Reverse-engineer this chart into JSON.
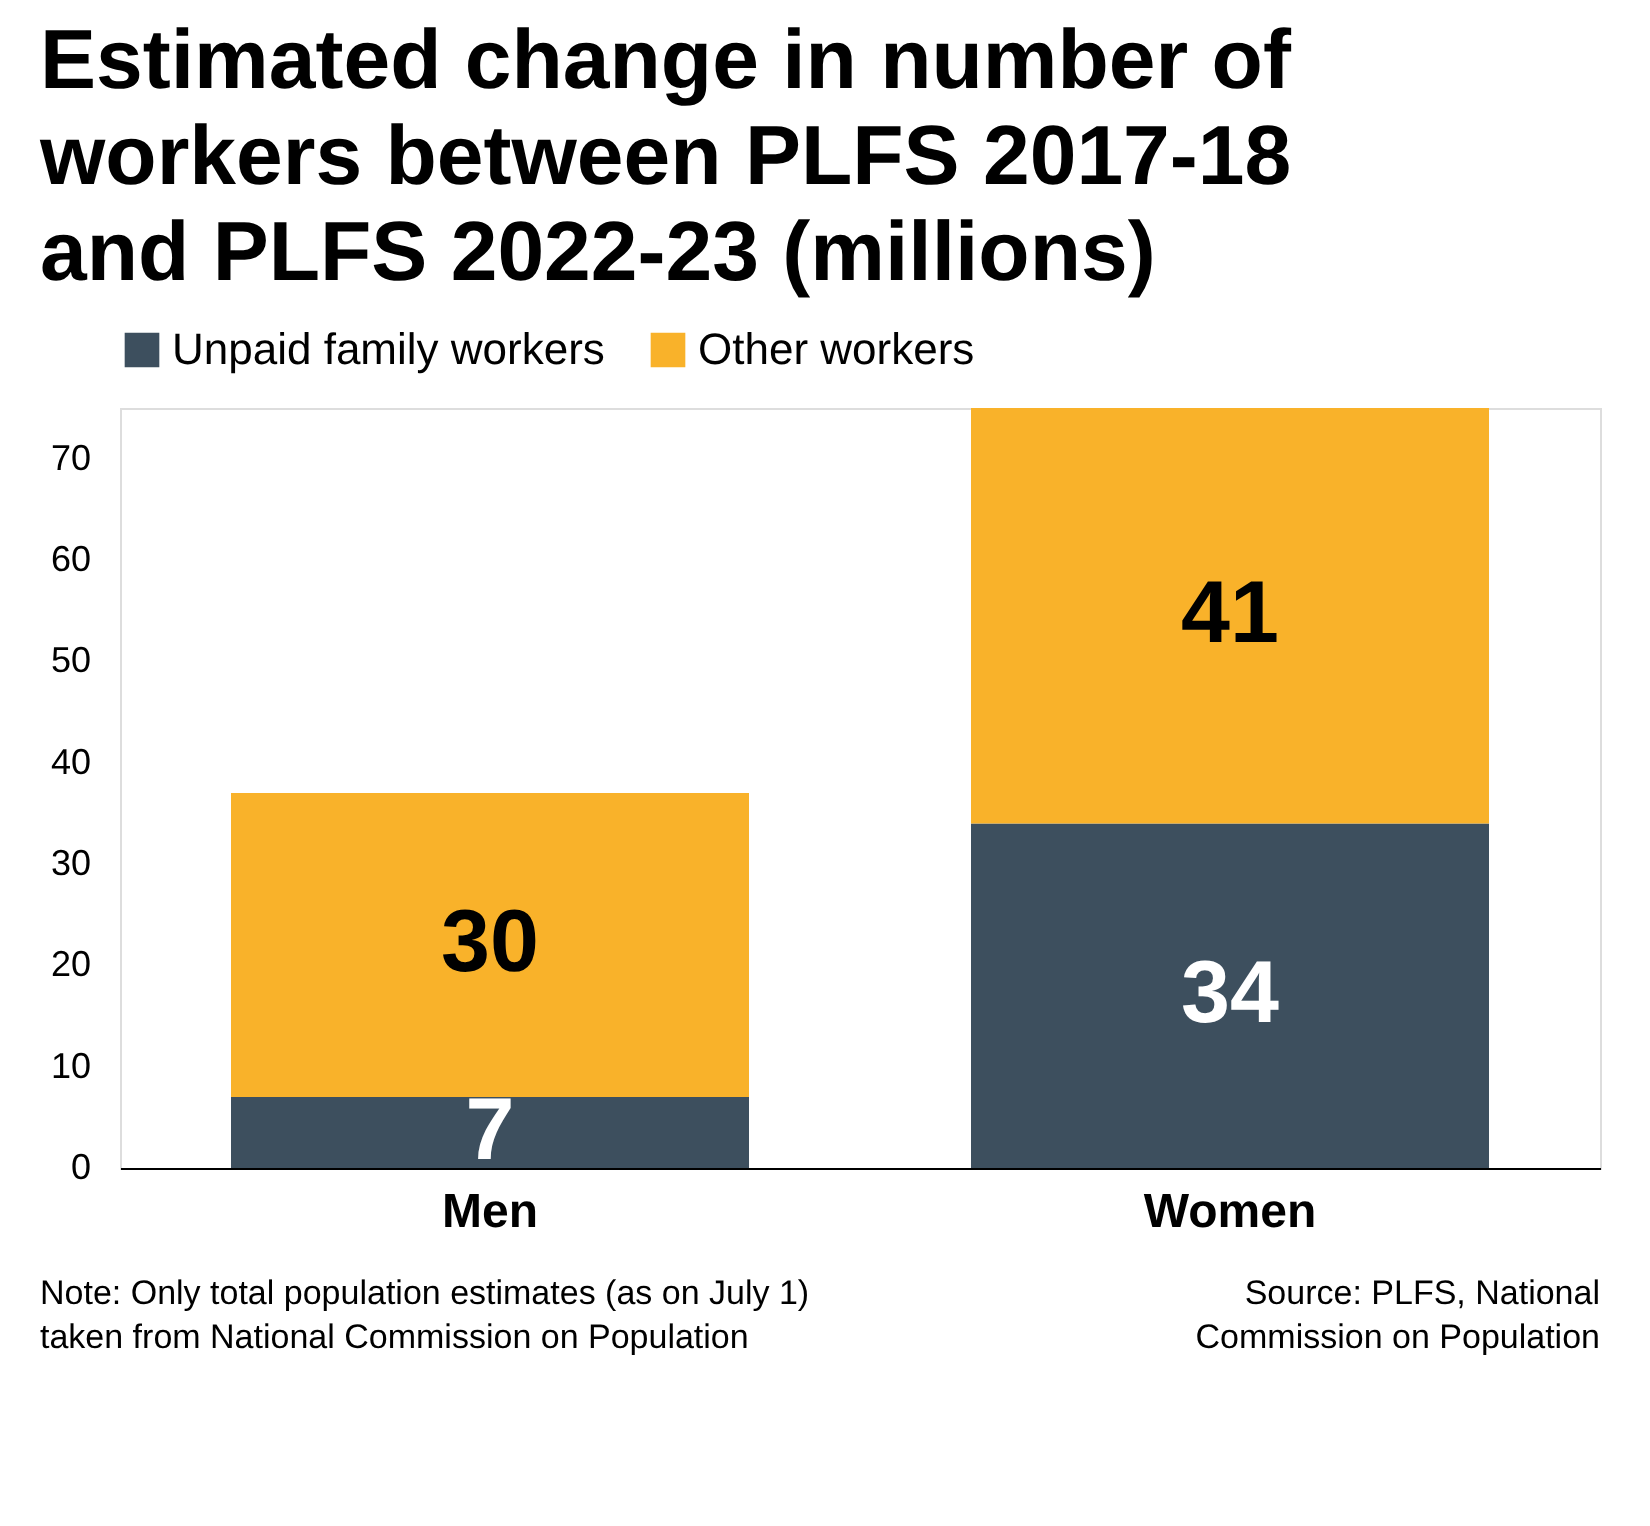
{
  "chart_data": {
    "type": "bar",
    "stacked": true,
    "title": "Estimated change in number of workers between PLFS 2017-18 and PLFS 2022-23 (millions)",
    "categories": [
      "Men",
      "Women"
    ],
    "series": [
      {
        "name": "Unpaid family workers",
        "color": "#3d4f5e",
        "values": [
          7,
          34
        ]
      },
      {
        "name": "Other workers",
        "color": "#f9b22a",
        "values": [
          30,
          41
        ]
      }
    ],
    "ylim": [
      0,
      75
    ],
    "yticks": [
      0,
      10,
      20,
      30,
      40,
      50,
      60,
      70
    ],
    "grid": false,
    "legend": "top left",
    "data_labels": true,
    "annotations": [
      "Note: Only total population estimates (as on July 1) taken from National Commission on Population",
      "Source: PLFS, National Commission on Population"
    ]
  }
}
